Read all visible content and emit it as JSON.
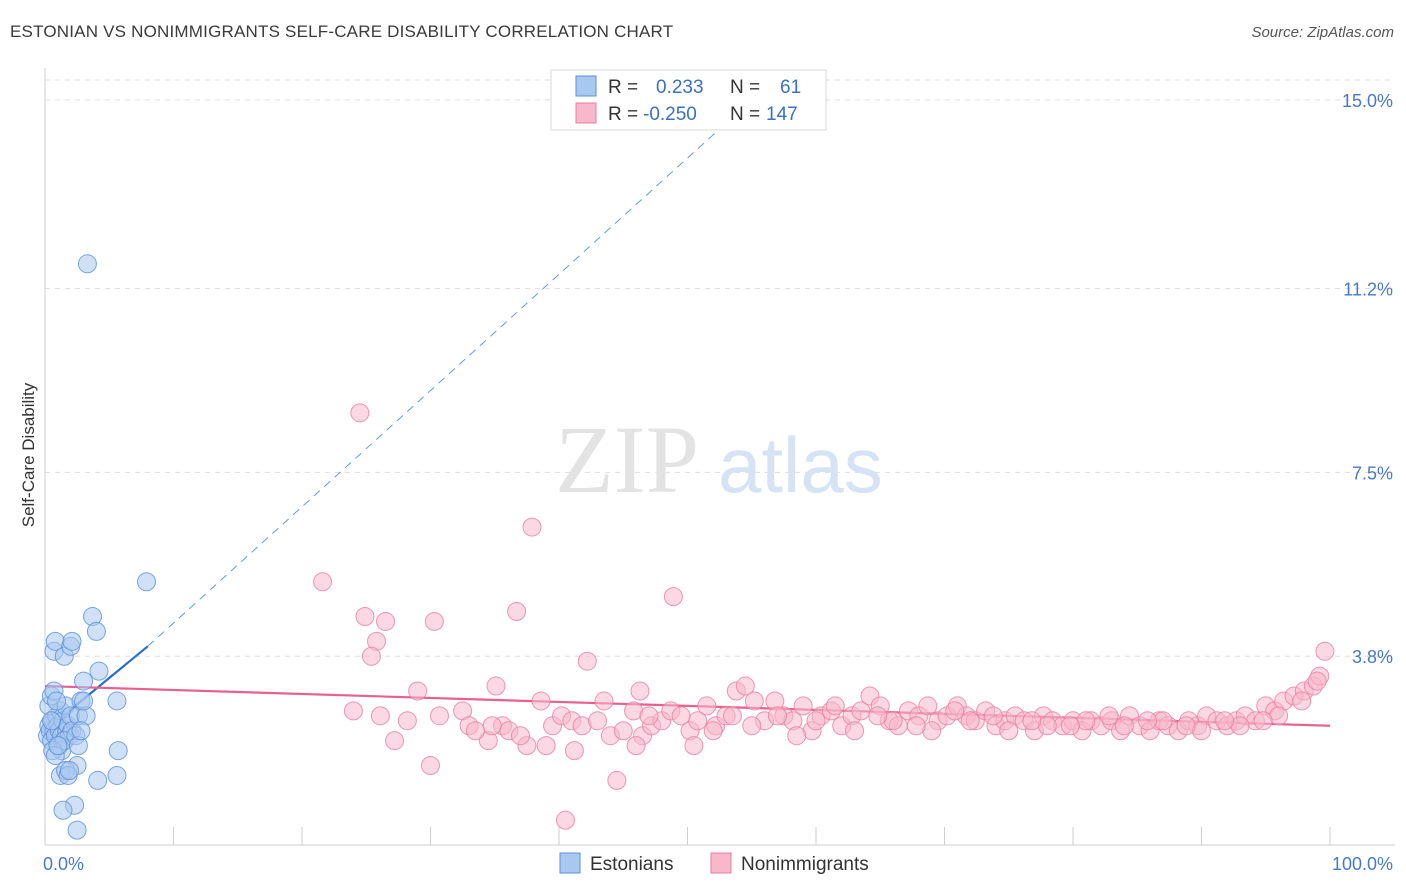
{
  "title": "ESTONIAN VS NONIMMIGRANTS SELF-CARE DISABILITY CORRELATION CHART",
  "source": "Source: ZipAtlas.com",
  "watermark": {
    "left": "ZIP",
    "right": "atlas"
  },
  "colors": {
    "estonians_fill": "#a9c8f0",
    "estonians_stroke": "#5b8fd6",
    "estonians_line": "#2a6ccf",
    "nonimmigrants_fill": "#f7b8cc",
    "nonimmigrants_stroke": "#e87ea0",
    "nonimmigrants_line": "#e8608e",
    "tick_label": "#4a78c8",
    "grid": "#dddddd"
  },
  "legend_top": {
    "rows": [
      {
        "r_label": "R =",
        "r_value": "0.233",
        "n_label": "N =",
        "n_value": "61",
        "series": "estonians"
      },
      {
        "r_label": "R =",
        "r_value": "-0.250",
        "n_label": "N =",
        "n_value": "147",
        "series": "nonimmigrants"
      }
    ]
  },
  "chart_data": {
    "type": "scatter",
    "title": "ESTONIAN VS NONIMMIGRANTS SELF-CARE DISABILITY CORRELATION CHART",
    "xlabel": "",
    "ylabel": "Self-Care Disability",
    "x_tick_labels": [
      "0.0%",
      "100.0%"
    ],
    "y_tick_labels": [
      "15.0%",
      "11.2%",
      "7.5%",
      "3.8%"
    ],
    "y_ticks": [
      15.0,
      11.2,
      7.5,
      3.8
    ],
    "xlim": [
      0,
      100
    ],
    "ylim": [
      0,
      15.4
    ],
    "grid": "horizontal dashed",
    "legend_position": "bottom-center",
    "series": [
      {
        "name": "Estonians",
        "key": "estonians",
        "r": 0.233,
        "n": 61,
        "trend": {
          "x0": 0,
          "y0": 2.3,
          "x1": 8,
          "y1": 4.0,
          "dashed_to_x": 55,
          "dashed_to_y": 15.0
        },
        "points": [
          [
            0.2,
            2.2
          ],
          [
            0.3,
            2.4
          ],
          [
            0.4,
            2.3
          ],
          [
            0.5,
            2.1
          ],
          [
            0.6,
            2.5
          ],
          [
            0.7,
            2.3
          ],
          [
            0.8,
            2.2
          ],
          [
            0.9,
            2.6
          ],
          [
            1.0,
            2.4
          ],
          [
            1.1,
            2.3
          ],
          [
            1.2,
            2.7
          ],
          [
            1.3,
            2.2
          ],
          [
            1.4,
            2.5
          ],
          [
            1.5,
            2.1
          ],
          [
            1.6,
            2.8
          ],
          [
            1.7,
            2.3
          ],
          [
            1.8,
            2.4
          ],
          [
            1.9,
            2.2
          ],
          [
            2.0,
            2.6
          ],
          [
            2.1,
            2.3
          ],
          [
            0.3,
            2.8
          ],
          [
            0.5,
            3.0
          ],
          [
            0.7,
            3.1
          ],
          [
            0.9,
            2.9
          ],
          [
            1.1,
            2.0
          ],
          [
            1.3,
            1.9
          ],
          [
            1.5,
            2.1
          ],
          [
            0.6,
            1.9
          ],
          [
            0.8,
            1.8
          ],
          [
            1.0,
            2.0
          ],
          [
            0.7,
            3.9
          ],
          [
            0.8,
            4.1
          ],
          [
            1.5,
            3.8
          ],
          [
            2.0,
            4.0
          ],
          [
            2.1,
            4.1
          ],
          [
            3.7,
            4.6
          ],
          [
            4.0,
            4.3
          ],
          [
            4.2,
            3.5
          ],
          [
            3.0,
            3.3
          ],
          [
            2.8,
            2.9
          ],
          [
            2.6,
            2.6
          ],
          [
            2.4,
            2.2
          ],
          [
            2.5,
            1.6
          ],
          [
            2.6,
            2.0
          ],
          [
            3.2,
            2.6
          ],
          [
            3.0,
            2.9
          ],
          [
            2.8,
            2.3
          ],
          [
            7.9,
            5.3
          ],
          [
            5.6,
            2.9
          ],
          [
            5.7,
            1.9
          ],
          [
            5.6,
            1.4
          ],
          [
            4.1,
            1.3
          ],
          [
            1.2,
            1.4
          ],
          [
            1.6,
            1.5
          ],
          [
            1.8,
            1.4
          ],
          [
            1.9,
            1.5
          ],
          [
            2.3,
            0.8
          ],
          [
            2.5,
            0.3
          ],
          [
            1.4,
            0.7
          ],
          [
            3.3,
            11.7
          ],
          [
            0.5,
            2.5
          ]
        ]
      },
      {
        "name": "Nonimmigrants",
        "key": "nonimmigrants",
        "r": -0.25,
        "n": 147,
        "trend": {
          "x0": 0,
          "y0": 3.2,
          "x1": 100,
          "y1": 2.4
        },
        "points": [
          [
            24.5,
            8.7
          ],
          [
            37.9,
            6.4
          ],
          [
            21.6,
            5.3
          ],
          [
            48.9,
            5.0
          ],
          [
            26.5,
            4.5
          ],
          [
            24.9,
            4.6
          ],
          [
            36.7,
            4.7
          ],
          [
            30.3,
            4.5
          ],
          [
            25.8,
            4.1
          ],
          [
            25.4,
            3.8
          ],
          [
            42.2,
            3.7
          ],
          [
            35.1,
            3.2
          ],
          [
            29.0,
            3.1
          ],
          [
            46.3,
            3.1
          ],
          [
            38.6,
            2.9
          ],
          [
            43.5,
            2.9
          ],
          [
            26.1,
            2.6
          ],
          [
            28.2,
            2.5
          ],
          [
            30.7,
            2.6
          ],
          [
            32.5,
            2.7
          ],
          [
            33.0,
            2.4
          ],
          [
            34.5,
            2.1
          ],
          [
            35.6,
            2.4
          ],
          [
            36.1,
            2.3
          ],
          [
            37.5,
            2.0
          ],
          [
            39.5,
            2.4
          ],
          [
            40.2,
            2.6
          ],
          [
            41.0,
            2.5
          ],
          [
            41.8,
            2.4
          ],
          [
            43.0,
            2.5
          ],
          [
            44.0,
            2.2
          ],
          [
            45.0,
            2.3
          ],
          [
            45.8,
            2.7
          ],
          [
            46.5,
            2.2
          ],
          [
            47.2,
            2.4
          ],
          [
            48.0,
            2.5
          ],
          [
            48.7,
            2.7
          ],
          [
            49.5,
            2.6
          ],
          [
            50.2,
            2.3
          ],
          [
            50.8,
            2.5
          ],
          [
            51.5,
            2.8
          ],
          [
            52.2,
            2.4
          ],
          [
            53.0,
            2.6
          ],
          [
            53.8,
            3.1
          ],
          [
            54.5,
            3.2
          ],
          [
            55.2,
            2.9
          ],
          [
            56.0,
            2.5
          ],
          [
            56.8,
            2.9
          ],
          [
            57.5,
            2.6
          ],
          [
            58.2,
            2.5
          ],
          [
            59.0,
            2.8
          ],
          [
            59.7,
            2.3
          ],
          [
            60.4,
            2.6
          ],
          [
            61.2,
            2.7
          ],
          [
            62.0,
            2.4
          ],
          [
            62.8,
            2.6
          ],
          [
            63.5,
            2.7
          ],
          [
            64.2,
            3.0
          ],
          [
            65.0,
            2.8
          ],
          [
            65.7,
            2.5
          ],
          [
            66.4,
            2.4
          ],
          [
            67.2,
            2.7
          ],
          [
            68.0,
            2.6
          ],
          [
            68.7,
            2.8
          ],
          [
            69.5,
            2.5
          ],
          [
            70.2,
            2.6
          ],
          [
            71.0,
            2.8
          ],
          [
            71.7,
            2.6
          ],
          [
            72.4,
            2.5
          ],
          [
            73.2,
            2.7
          ],
          [
            74.0,
            2.4
          ],
          [
            74.7,
            2.5
          ],
          [
            75.5,
            2.6
          ],
          [
            76.2,
            2.5
          ],
          [
            77.0,
            2.3
          ],
          [
            77.7,
            2.6
          ],
          [
            78.4,
            2.5
          ],
          [
            79.2,
            2.4
          ],
          [
            80.0,
            2.5
          ],
          [
            80.7,
            2.3
          ],
          [
            81.4,
            2.5
          ],
          [
            82.2,
            2.4
          ],
          [
            83.0,
            2.5
          ],
          [
            83.7,
            2.3
          ],
          [
            84.4,
            2.6
          ],
          [
            85.2,
            2.4
          ],
          [
            86.0,
            2.3
          ],
          [
            86.7,
            2.5
          ],
          [
            87.4,
            2.4
          ],
          [
            88.2,
            2.3
          ],
          [
            89.0,
            2.5
          ],
          [
            89.7,
            2.4
          ],
          [
            90.4,
            2.6
          ],
          [
            91.2,
            2.5
          ],
          [
            92.0,
            2.4
          ],
          [
            92.7,
            2.5
          ],
          [
            93.4,
            2.6
          ],
          [
            94.2,
            2.5
          ],
          [
            95.0,
            2.8
          ],
          [
            95.7,
            2.7
          ],
          [
            96.4,
            2.9
          ],
          [
            97.2,
            3.0
          ],
          [
            98.0,
            3.1
          ],
          [
            98.7,
            3.2
          ],
          [
            99.2,
            3.4
          ],
          [
            99.6,
            3.9
          ],
          [
            24.0,
            2.7
          ],
          [
            27.2,
            2.1
          ],
          [
            30.0,
            1.6
          ],
          [
            33.5,
            2.3
          ],
          [
            34.8,
            2.4
          ],
          [
            37.0,
            2.2
          ],
          [
            39.0,
            2.0
          ],
          [
            41.2,
            1.9
          ],
          [
            44.5,
            1.3
          ],
          [
            40.5,
            0.5
          ],
          [
            47.0,
            2.6
          ],
          [
            52.0,
            2.3
          ],
          [
            55.0,
            2.4
          ],
          [
            58.5,
            2.2
          ],
          [
            60.0,
            2.5
          ],
          [
            63.0,
            2.3
          ],
          [
            66.0,
            2.5
          ],
          [
            69.0,
            2.3
          ],
          [
            72.0,
            2.5
          ],
          [
            75.0,
            2.3
          ],
          [
            78.0,
            2.4
          ],
          [
            81.0,
            2.5
          ],
          [
            84.0,
            2.4
          ],
          [
            87.0,
            2.5
          ],
          [
            90.0,
            2.3
          ],
          [
            93.0,
            2.4
          ],
          [
            96.0,
            2.6
          ],
          [
            50.5,
            2.0
          ],
          [
            57.0,
            2.6
          ],
          [
            61.5,
            2.8
          ],
          [
            64.8,
            2.6
          ],
          [
            67.8,
            2.4
          ],
          [
            70.8,
            2.7
          ],
          [
            73.8,
            2.6
          ],
          [
            76.8,
            2.5
          ],
          [
            79.8,
            2.4
          ],
          [
            82.8,
            2.6
          ],
          [
            85.8,
            2.5
          ],
          [
            88.8,
            2.4
          ],
          [
            91.8,
            2.5
          ],
          [
            94.8,
            2.5
          ],
          [
            97.8,
            2.9
          ],
          [
            99.0,
            3.3
          ],
          [
            46.0,
            2.0
          ],
          [
            53.5,
            2.6
          ]
        ]
      }
    ]
  },
  "bottom_legend": [
    {
      "label": "Estonians",
      "series": "estonians"
    },
    {
      "label": "Nonimmigrants",
      "series": "nonimmigrants"
    }
  ]
}
